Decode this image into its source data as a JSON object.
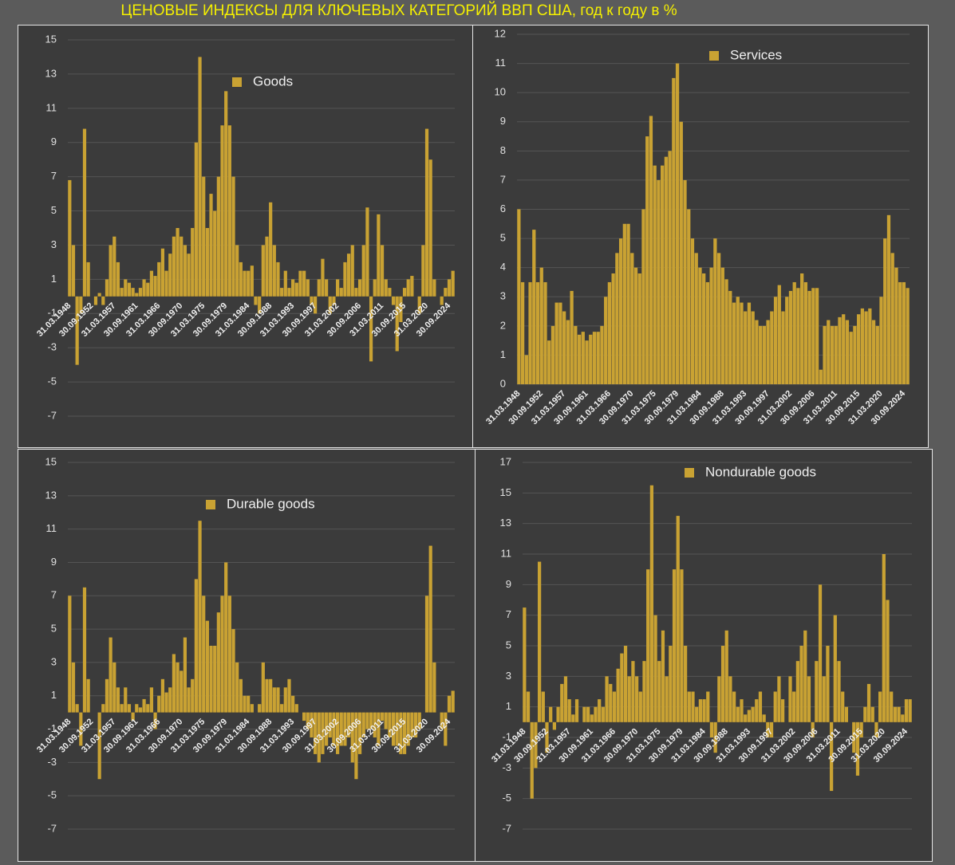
{
  "title": "ЦЕНОВЫЕ ИНДЕКСЫ ДЛЯ КЛЮЧЕВЫХ КАТЕГОРИЙ ВВП США, год к году в %",
  "chart_data": [
    {
      "type": "bar",
      "grid": true,
      "categories": [
        "31.03.1948",
        null,
        null,
        null,
        null,
        null,
        "30.09.1952",
        null,
        null,
        null,
        null,
        null,
        "31.03.1957",
        null,
        null,
        null,
        null,
        null,
        "30.09.1961",
        null,
        null,
        null,
        null,
        null,
        "31.03.1966",
        null,
        null,
        null,
        null,
        null,
        "30.09.1970",
        null,
        null,
        null,
        null,
        null,
        "31.03.1975",
        null,
        null,
        null,
        null,
        null,
        "30.09.1979",
        null,
        null,
        null,
        null,
        null,
        "31.03.1984",
        null,
        null,
        null,
        null,
        null,
        "30.09.1988",
        null,
        null,
        null,
        null,
        null,
        "31.03.1993",
        null,
        null,
        null,
        null,
        null,
        "30.09.1997",
        null,
        null,
        null,
        null,
        null,
        "31.03.2002",
        null,
        null,
        null,
        null,
        null,
        "30.09.2006",
        null,
        null,
        null,
        null,
        null,
        "31.03.2011",
        null,
        null,
        null,
        null,
        null,
        "30.09.2015",
        null,
        null,
        null,
        null,
        null,
        "31.03.2020",
        null,
        null,
        null,
        null,
        null,
        "30.09.2024",
        null
      ],
      "ylim": [
        -7,
        15
      ],
      "yticks": [
        -7,
        -5,
        -3,
        -1,
        1,
        3,
        5,
        7,
        9,
        11,
        13,
        15
      ],
      "series": [
        {
          "name": "Goods",
          "color": "#c9a233",
          "values": [
            6.8,
            3,
            -4,
            -1,
            9.8,
            2,
            0,
            -0.5,
            0.2,
            -0.5,
            1,
            3,
            3.5,
            2,
            0.5,
            1,
            0.8,
            0.5,
            0.2,
            0.5,
            1,
            0.8,
            1.5,
            1.2,
            2,
            2.8,
            1.5,
            2.5,
            3.5,
            4,
            3.5,
            3,
            2.5,
            4,
            9,
            14,
            7,
            4,
            6,
            5,
            7,
            10,
            12,
            10,
            7,
            3,
            2,
            1.5,
            1.5,
            1.8,
            -0.5,
            -1,
            3,
            3.5,
            5.5,
            3,
            2,
            0.5,
            1.5,
            0.5,
            1,
            0.8,
            1.5,
            1.5,
            1,
            -0.5,
            -1,
            1,
            2.2,
            1,
            -1,
            -0.5,
            1,
            0.5,
            2,
            2.5,
            3,
            0.5,
            1,
            3,
            5.2,
            -3.8,
            1,
            4.8,
            3,
            1,
            0.5,
            -0.5,
            -3.2,
            -1.5,
            0.5,
            1,
            1.2,
            0,
            -1,
            3,
            9.8,
            8,
            1,
            0,
            -0.5,
            0.5,
            1,
            1.5
          ]
        }
      ]
    },
    {
      "type": "bar",
      "grid": true,
      "categories": [
        "31.03.1948",
        null,
        null,
        null,
        null,
        null,
        "30.09.1952",
        null,
        null,
        null,
        null,
        null,
        "31.03.1957",
        null,
        null,
        null,
        null,
        null,
        "30.09.1961",
        null,
        null,
        null,
        null,
        null,
        "31.03.1966",
        null,
        null,
        null,
        null,
        null,
        "30.09.1970",
        null,
        null,
        null,
        null,
        null,
        "31.03.1975",
        null,
        null,
        null,
        null,
        null,
        "30.09.1979",
        null,
        null,
        null,
        null,
        null,
        "31.03.1984",
        null,
        null,
        null,
        null,
        null,
        "30.09.1988",
        null,
        null,
        null,
        null,
        null,
        "31.03.1993",
        null,
        null,
        null,
        null,
        null,
        "30.09.1997",
        null,
        null,
        null,
        null,
        null,
        "31.03.2002",
        null,
        null,
        null,
        null,
        null,
        "30.09.2006",
        null,
        null,
        null,
        null,
        null,
        "31.03.2011",
        null,
        null,
        null,
        null,
        null,
        "30.09.2015",
        null,
        null,
        null,
        null,
        null,
        "31.03.2020",
        null,
        null,
        null,
        null,
        null,
        "30.09.2024",
        null
      ],
      "ylim": [
        0,
        12
      ],
      "yticks": [
        0,
        1,
        2,
        3,
        4,
        5,
        6,
        7,
        8,
        9,
        10,
        11,
        12
      ],
      "series": [
        {
          "name": "Services",
          "color": "#c9a233",
          "values": [
            6,
            3.5,
            1,
            3.5,
            5.3,
            3.5,
            4,
            3.5,
            1.5,
            2,
            2.8,
            2.8,
            2.5,
            2.2,
            3.2,
            2,
            1.7,
            1.8,
            1.5,
            1.7,
            1.8,
            1.8,
            2,
            3,
            3.5,
            3.8,
            4.5,
            5,
            5.5,
            5.5,
            4.5,
            4,
            3.8,
            6,
            8.5,
            9.2,
            7.5,
            7,
            7.5,
            7.8,
            8,
            10.5,
            11,
            9,
            7,
            6,
            5,
            4.5,
            4,
            3.8,
            3.5,
            4,
            5,
            4.5,
            4,
            3.6,
            3.2,
            2.8,
            3,
            2.8,
            2.5,
            2.8,
            2.5,
            2.2,
            2,
            2,
            2.2,
            2.5,
            3,
            3.4,
            2.5,
            3,
            3.2,
            3.5,
            3.3,
            3.8,
            3.5,
            3.2,
            3.3,
            3.3,
            0.5,
            2,
            2.2,
            2,
            2,
            2.3,
            2.4,
            2.2,
            1.8,
            2,
            2.4,
            2.6,
            2.5,
            2.6,
            2.2,
            2,
            3,
            5,
            5.8,
            4.5,
            4,
            3.5,
            3.5,
            3.3
          ]
        }
      ]
    },
    {
      "type": "bar",
      "grid": true,
      "categories": [
        "31.03.1948",
        null,
        null,
        null,
        null,
        null,
        "30.09.1952",
        null,
        null,
        null,
        null,
        null,
        "31.03.1957",
        null,
        null,
        null,
        null,
        null,
        "30.09.1961",
        null,
        null,
        null,
        null,
        null,
        "31.03.1966",
        null,
        null,
        null,
        null,
        null,
        "30.09.1970",
        null,
        null,
        null,
        null,
        null,
        "31.03.1975",
        null,
        null,
        null,
        null,
        null,
        "30.09.1979",
        null,
        null,
        null,
        null,
        null,
        "31.03.1984",
        null,
        null,
        null,
        null,
        null,
        "30.09.1988",
        null,
        null,
        null,
        null,
        null,
        "31.03.1993",
        null,
        null,
        null,
        null,
        null,
        "30.09.1997",
        null,
        null,
        null,
        null,
        null,
        "31.03.2002",
        null,
        null,
        null,
        null,
        null,
        "30.09.2006",
        null,
        null,
        null,
        null,
        null,
        "31.03.2011",
        null,
        null,
        null,
        null,
        null,
        "30.09.2015",
        null,
        null,
        null,
        null,
        null,
        "31.03.2020",
        null,
        null,
        null,
        null,
        null,
        "30.09.2024",
        null
      ],
      "ylim": [
        -7,
        15
      ],
      "yticks": [
        -7,
        -5,
        -3,
        -1,
        1,
        3,
        5,
        7,
        9,
        11,
        13,
        15
      ],
      "series": [
        {
          "name": "Durable goods",
          "color": "#c9a233",
          "values": [
            7,
            3,
            0.5,
            -2,
            7.5,
            2,
            0,
            0,
            -4,
            0.5,
            2,
            4.5,
            3,
            1.5,
            0.5,
            1.5,
            0.5,
            -0.5,
            0.5,
            0.3,
            0.8,
            0.5,
            1.5,
            -1,
            1,
            2,
            1.2,
            1.5,
            3.5,
            3,
            2.5,
            4.5,
            1.5,
            2,
            8,
            11.5,
            7,
            5.5,
            4,
            4,
            6,
            7,
            9,
            7,
            5,
            3,
            2,
            1,
            1,
            0.5,
            0,
            0.5,
            3,
            2,
            2,
            1.5,
            1.5,
            0.5,
            1.5,
            2,
            1,
            0.5,
            0,
            -0.5,
            -1,
            -1.5,
            -2.5,
            -3,
            -2.5,
            -2,
            -1.5,
            -2,
            -2.5,
            -2,
            -2,
            -1.5,
            -3,
            -4,
            -2.5,
            -1.5,
            -1,
            -1,
            -1.5,
            -2,
            -0.5,
            -1,
            -1.5,
            -2,
            -2,
            -2.5,
            -2.5,
            -2,
            -1.5,
            -1.5,
            -1,
            0,
            7,
            10,
            3,
            0,
            -1,
            -2,
            1,
            1.3
          ]
        }
      ]
    },
    {
      "type": "bar",
      "grid": true,
      "categories": [
        "31.03.1948",
        null,
        null,
        null,
        null,
        null,
        "30.09.1952",
        null,
        null,
        null,
        null,
        null,
        "31.03.1957",
        null,
        null,
        null,
        null,
        null,
        "30.09.1961",
        null,
        null,
        null,
        null,
        null,
        "31.03.1966",
        null,
        null,
        null,
        null,
        null,
        "30.09.1970",
        null,
        null,
        null,
        null,
        null,
        "31.03.1975",
        null,
        null,
        null,
        null,
        null,
        "30.09.1979",
        null,
        null,
        null,
        null,
        null,
        "31.03.1984",
        null,
        null,
        null,
        null,
        null,
        "30.09.1988",
        null,
        null,
        null,
        null,
        null,
        "31.03.1993",
        null,
        null,
        null,
        null,
        null,
        "30.09.1997",
        null,
        null,
        null,
        null,
        null,
        "31.03.2002",
        null,
        null,
        null,
        null,
        null,
        "30.09.2006",
        null,
        null,
        null,
        null,
        null,
        "31.03.2011",
        null,
        null,
        null,
        null,
        null,
        "30.09.2015",
        null,
        null,
        null,
        null,
        null,
        "31.03.2020",
        null,
        null,
        null,
        null,
        null,
        "30.09.2024",
        null
      ],
      "ylim": [
        -7,
        17
      ],
      "yticks": [
        -7,
        -5,
        -3,
        -1,
        1,
        3,
        5,
        7,
        9,
        11,
        13,
        15,
        17
      ],
      "series": [
        {
          "name": "Nondurable goods",
          "color": "#c9a233",
          "values": [
            7.5,
            2,
            -5,
            -3,
            10.5,
            2,
            -2,
            1,
            -0.5,
            1,
            2.5,
            3,
            1.5,
            0.5,
            1.5,
            0,
            1,
            1,
            0.5,
            1,
            1.5,
            1,
            3,
            2.5,
            2,
            3.5,
            4.5,
            5,
            3,
            4,
            3,
            2,
            4,
            10,
            15.5,
            7,
            4,
            6,
            3,
            5,
            10,
            13.5,
            10,
            5,
            2,
            2,
            1,
            1.5,
            1.5,
            2,
            -1,
            -2,
            3,
            5,
            6,
            3,
            2,
            1,
            1.5,
            0.5,
            0.8,
            1,
            1.5,
            2,
            0.5,
            -1,
            -1,
            2,
            3,
            1.5,
            0,
            3,
            2,
            4,
            5,
            6,
            3,
            -1,
            4,
            9,
            3,
            5,
            -4.5,
            7,
            4,
            2,
            1,
            0,
            -2,
            -3.5,
            -1,
            1,
            2.5,
            1,
            -1,
            2,
            11,
            8,
            2,
            1,
            1,
            0.5,
            1.5,
            1.5
          ]
        }
      ]
    }
  ]
}
